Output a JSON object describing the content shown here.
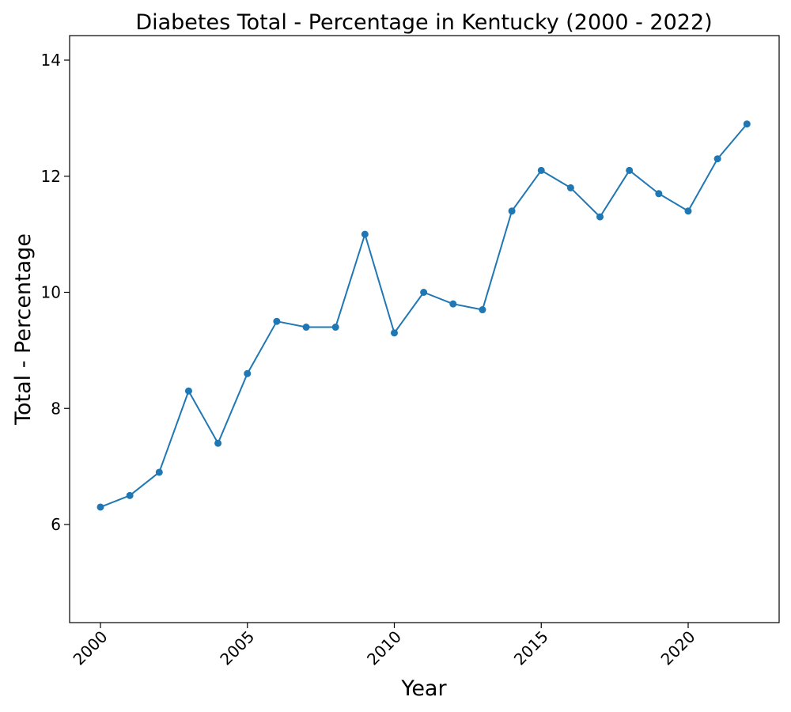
{
  "chart_data": {
    "type": "line",
    "title": "Diabetes Total - Percentage in Kentucky (2000 - 2022)",
    "xlabel": "Year",
    "ylabel": "Total - Percentage",
    "xlim": [
      1999,
      2031
    ],
    "ylim": [
      4.3,
      14.4
    ],
    "x_ticks": [
      2000,
      2005,
      2010,
      2015,
      2020
    ],
    "y_ticks": [
      6,
      8,
      10,
      12,
      14
    ],
    "grid": false,
    "legend": "none",
    "series": [
      {
        "color": "#1f77b4",
        "marker": "circle",
        "x": [
          2000,
          2001,
          2002,
          2003,
          2004,
          2005,
          2006,
          2007,
          2008,
          2009,
          2010,
          2011,
          2012,
          2013,
          2014,
          2015,
          2016,
          2017,
          2018,
          2019,
          2020,
          2021,
          2022
        ],
        "y": [
          6.3,
          6.5,
          6.9,
          8.3,
          7.4,
          8.6,
          9.5,
          9.4,
          9.4,
          11.0,
          9.3,
          10.0,
          9.8,
          9.7,
          11.4,
          12.1,
          11.8,
          11.3,
          12.1,
          11.7,
          11.4,
          12.3,
          12.9
        ]
      }
    ]
  }
}
